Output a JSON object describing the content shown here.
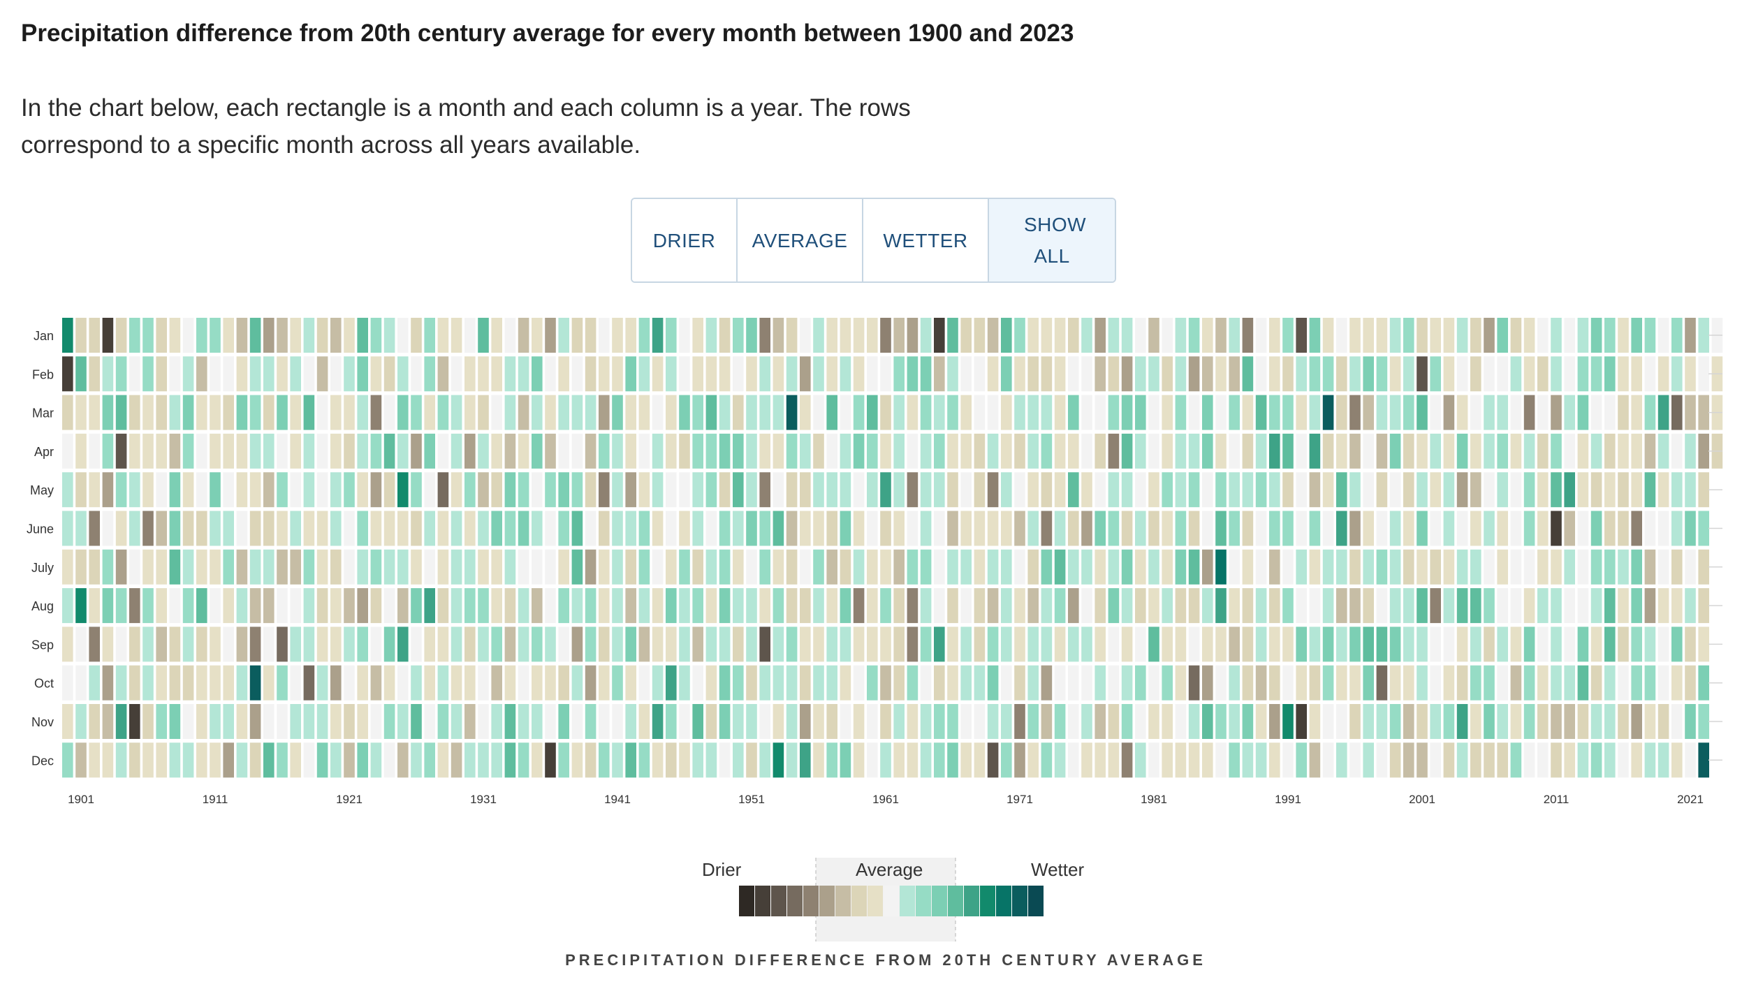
{
  "title": "Precipitation difference from 20th century average for every month between 1900 and 2023",
  "intro": "In the chart below, each rectangle is a month and each column is a year. The rows correspond to a specific month across all years available.",
  "filters": [
    {
      "label": "DRIER"
    },
    {
      "label": "AVERAGE"
    },
    {
      "label": "WETTER"
    },
    {
      "label": "SHOW ALL",
      "active": true
    }
  ],
  "legend": {
    "drier": "Drier",
    "average": "Average",
    "wetter": "Wetter",
    "title": "PRECIPITATION DIFFERENCE FROM 20TH CENTURY AVERAGE",
    "colors": [
      "#2e2924",
      "#463f38",
      "#5e554c",
      "#766b5f",
      "#8e8171",
      "#aba08b",
      "#c6bda5",
      "#dcd5b8",
      "#e6e0c6",
      "#f3f3f3",
      "#b3e6d6",
      "#96dcc5",
      "#7ccfb4",
      "#5fbd9e",
      "#3ea387",
      "#128a6c",
      "#077467",
      "#0b5d5e",
      "#0a4a53"
    ]
  },
  "chart_data": {
    "type": "heatmap",
    "title": "Precipitation difference from 20th century average for every month between 1900 and 2023",
    "rows": [
      "Jan",
      "Feb",
      "Mar",
      "Apr",
      "May",
      "June",
      "July",
      "Aug",
      "Sep",
      "Oct",
      "Nov",
      "Dec"
    ],
    "x_ticks": [
      "1901",
      "1911",
      "1921",
      "1931",
      "1941",
      "1951",
      "1961",
      "1971",
      "1981",
      "1991",
      "2001",
      "2011",
      "2021"
    ],
    "years": [
      1900,
      2023
    ],
    "value_scale": "category index: -9 (driest) .. 0 (average) .. +9 (wettest)",
    "seed": 20231
  }
}
